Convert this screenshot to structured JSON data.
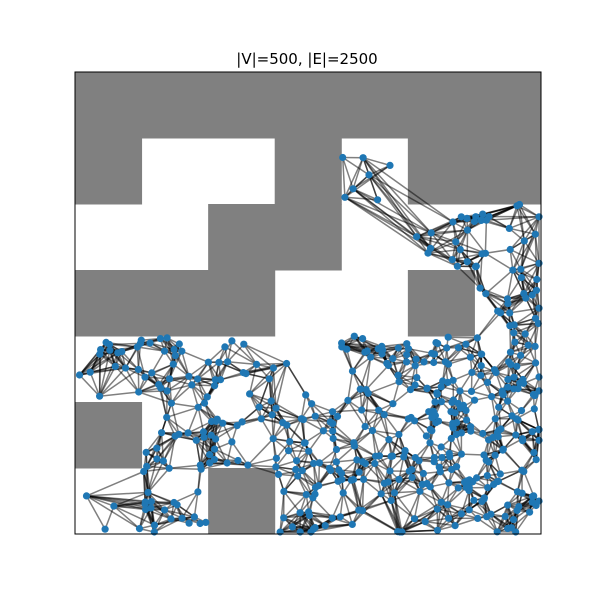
{
  "title": "|V|=500, |E|=2500",
  "graph": {
    "vertex_count": 500,
    "edge_count": 2500
  },
  "colors": {
    "obstacle": "#808080",
    "free_space": "#ffffff",
    "node": "#1f77b4",
    "edge": "#000000",
    "frame": "#000000"
  },
  "obstacle_grid": {
    "cols": 7,
    "rows": 7,
    "cells": [
      [
        1,
        1,
        1,
        1,
        1,
        1,
        1
      ],
      [
        1,
        0,
        0,
        1,
        0,
        1,
        1
      ],
      [
        0,
        0,
        1,
        1,
        0,
        0,
        0
      ],
      [
        1,
        1,
        1,
        0,
        0,
        1,
        0
      ],
      [
        0,
        0,
        0,
        0,
        0,
        0,
        0
      ],
      [
        1,
        0,
        0,
        0,
        0,
        0,
        0
      ],
      [
        0,
        0,
        1,
        0,
        0,
        0,
        0
      ]
    ]
  }
}
